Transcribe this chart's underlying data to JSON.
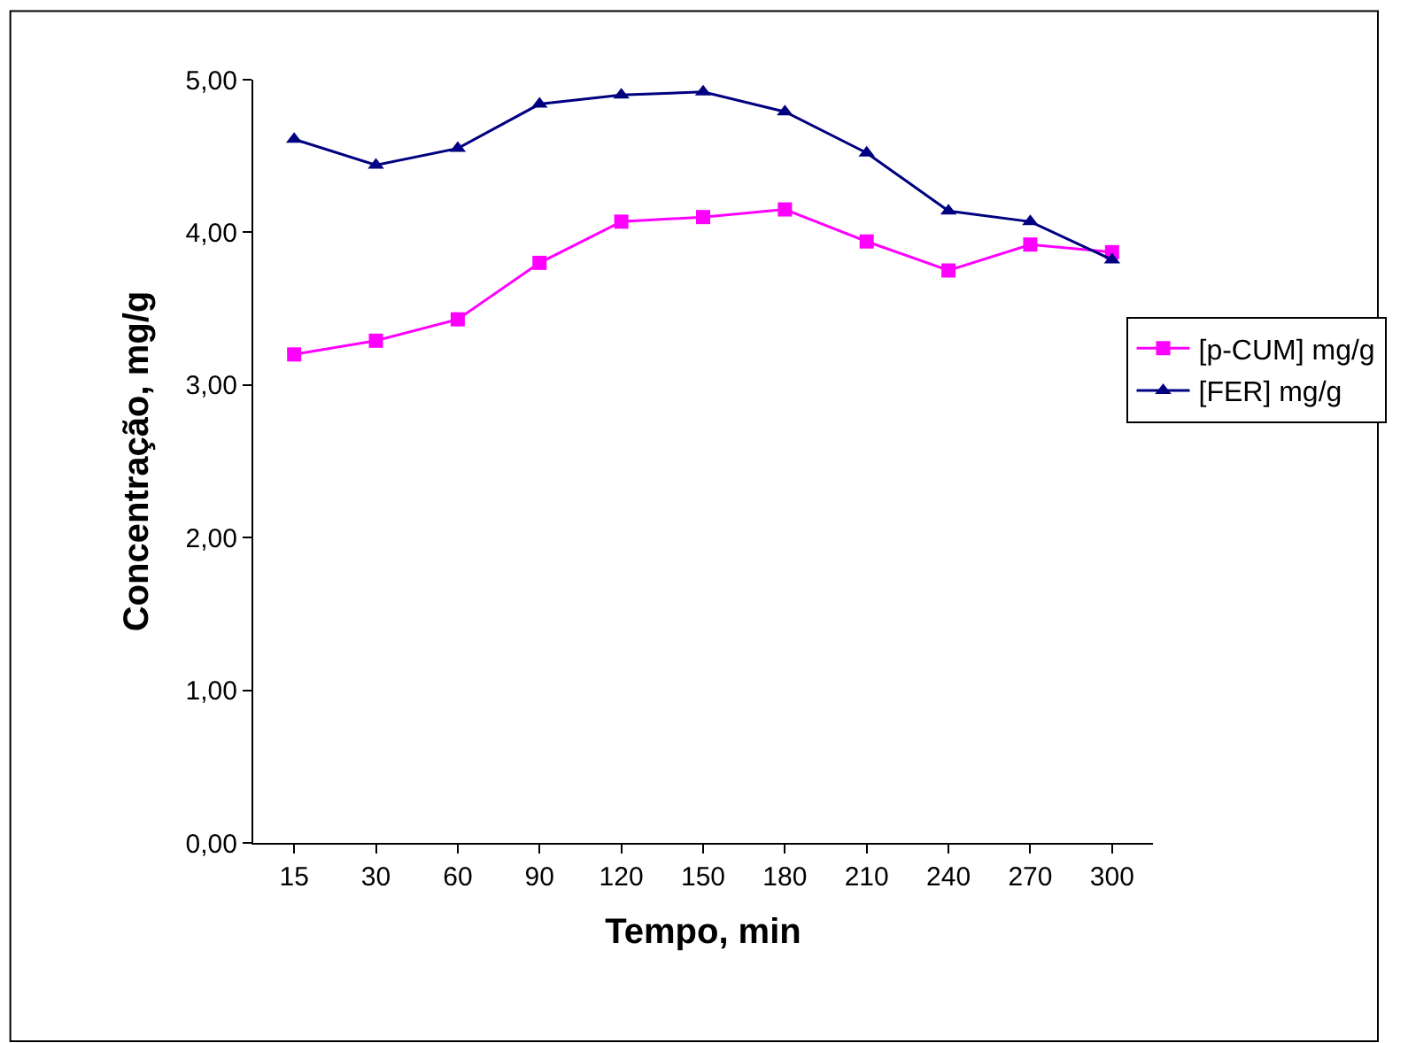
{
  "chart_data": {
    "type": "line",
    "xlabel": "Tempo, min",
    "ylabel": "Concentração, mg/g",
    "categories": [
      "15",
      "30",
      "60",
      "90",
      "120",
      "150",
      "180",
      "210",
      "240",
      "270",
      "300"
    ],
    "series": [
      {
        "name": "[p-CUM] mg/g",
        "color": "#ff00ff",
        "marker": "square",
        "values": [
          3.2,
          3.29,
          3.43,
          3.8,
          4.07,
          4.1,
          4.15,
          3.94,
          3.75,
          3.92,
          3.87
        ]
      },
      {
        "name": "[FER] mg/g",
        "color": "#000080",
        "marker": "triangle",
        "values": [
          4.61,
          4.44,
          4.55,
          4.84,
          4.9,
          4.92,
          4.79,
          4.52,
          4.14,
          4.07,
          3.82
        ]
      }
    ],
    "ylim": [
      0,
      5
    ],
    "yticks": [
      {
        "value": 0,
        "label": "0,00"
      },
      {
        "value": 1,
        "label": "1,00"
      },
      {
        "value": 2,
        "label": "2,00"
      },
      {
        "value": 3,
        "label": "3,00"
      },
      {
        "value": 4,
        "label": "4,00"
      },
      {
        "value": 5,
        "label": "5,00"
      }
    ],
    "legend": "right",
    "line_style": "solid"
  }
}
